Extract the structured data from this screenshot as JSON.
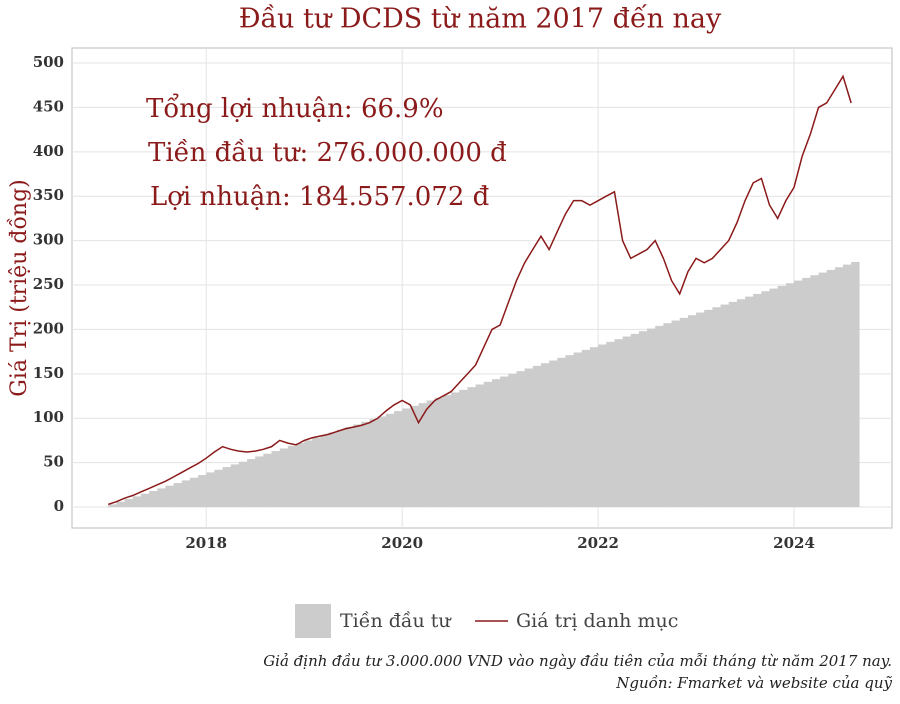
{
  "chart_data": {
    "type": "area-line",
    "title": "Đầu tư DCDS từ năm 2017 đến nay",
    "y_label": "Giá Trị (triệu đồng)",
    "annotations": [
      "Tổng lợi nhuận: 66.9%",
      "Tiền đầu tư: 276.000.000 đ",
      "Lợi nhuận: 184.557.072 đ"
    ],
    "caption": [
      "Giả định đầu tư 3.000.000 VND vào ngày đầu tiên của mỗi tháng từ năm 2017 nay.",
      "Nguồn: Fmarket và website của quỹ"
    ],
    "xlim": [
      2016.63,
      2025.0
    ],
    "ylim": [
      -23.6,
      516.9
    ],
    "xticks": [
      2018,
      2020,
      2022,
      2024
    ],
    "yticks": [
      0,
      50,
      100,
      150,
      200,
      250,
      300,
      350,
      400,
      450,
      500
    ],
    "grid": true,
    "legend": "bottom",
    "x": [
      2017,
      2017.083,
      2017.167,
      2017.25,
      2017.333,
      2017.417,
      2017.5,
      2017.583,
      2017.667,
      2017.75,
      2017.833,
      2017.917,
      2018,
      2018.083,
      2018.167,
      2018.25,
      2018.333,
      2018.417,
      2018.5,
      2018.583,
      2018.667,
      2018.75,
      2018.833,
      2018.917,
      2019,
      2019.083,
      2019.167,
      2019.25,
      2019.333,
      2019.417,
      2019.5,
      2019.583,
      2019.667,
      2019.75,
      2019.833,
      2019.917,
      2020,
      2020.083,
      2020.167,
      2020.25,
      2020.333,
      2020.417,
      2020.5,
      2020.583,
      2020.667,
      2020.75,
      2020.833,
      2020.917,
      2021,
      2021.083,
      2021.167,
      2021.25,
      2021.333,
      2021.417,
      2021.5,
      2021.583,
      2021.667,
      2021.75,
      2021.833,
      2021.917,
      2022,
      2022.083,
      2022.167,
      2022.25,
      2022.333,
      2022.417,
      2022.5,
      2022.583,
      2022.667,
      2022.75,
      2022.833,
      2022.917,
      2023,
      2023.083,
      2023.167,
      2023.25,
      2023.333,
      2023.417,
      2023.5,
      2023.583,
      2023.667,
      2023.75,
      2023.833,
      2023.917,
      2024,
      2024.083,
      2024.167,
      2024.25,
      2024.333,
      2024.417,
      2024.5,
      2024.583
    ],
    "series": [
      {
        "name": "Tiền đầu tư",
        "kind": "area",
        "color": "#cccccc",
        "values": [
          3,
          6,
          9,
          12,
          15,
          18,
          21,
          24,
          27,
          30,
          33,
          36,
          39,
          42,
          45,
          48,
          51,
          54,
          57,
          60,
          63,
          66,
          69,
          72,
          75,
          78,
          81,
          84,
          87,
          90,
          93,
          96,
          99,
          102,
          105,
          108,
          111,
          114,
          117,
          120,
          123,
          126,
          129,
          132,
          135,
          138,
          141,
          144,
          147,
          150,
          153,
          156,
          159,
          162,
          165,
          168,
          171,
          174,
          177,
          180,
          183,
          186,
          189,
          192,
          195,
          198,
          201,
          204,
          207,
          210,
          213,
          216,
          219,
          222,
          225,
          228,
          231,
          234,
          237,
          240,
          243,
          246,
          249,
          252,
          255,
          258,
          261,
          264,
          267,
          270,
          273,
          276
        ]
      },
      {
        "name": "Giá trị danh mục",
        "kind": "line",
        "color": "#8b1a1a",
        "values": [
          3,
          6,
          10,
          13,
          17,
          21,
          25,
          29,
          34,
          39,
          44,
          49,
          55,
          62,
          68,
          65,
          63,
          62,
          63,
          65,
          68,
          75,
          72,
          70,
          75,
          78,
          80,
          82,
          85,
          88,
          90,
          92,
          95,
          100,
          108,
          115,
          120,
          115,
          95,
          110,
          120,
          125,
          130,
          140,
          150,
          160,
          180,
          200,
          205,
          230,
          255,
          275,
          290,
          305,
          290,
          310,
          330,
          345,
          345,
          340,
          345,
          350,
          355,
          300,
          280,
          285,
          290,
          300,
          280,
          255,
          240,
          265,
          280,
          275,
          280,
          290,
          300,
          320,
          345,
          365,
          370,
          340,
          325,
          345,
          360,
          395,
          420,
          450,
          455,
          470,
          485,
          455
        ]
      }
    ]
  }
}
